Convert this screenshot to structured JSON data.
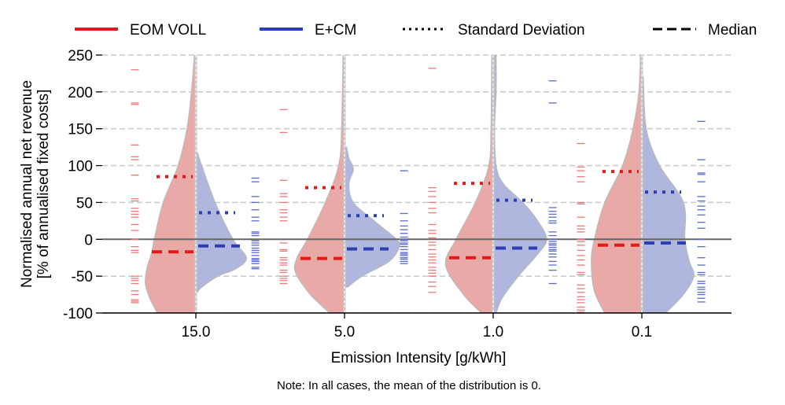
{
  "chart_data": {
    "type": "violin",
    "xlabel": "Emission Intensity [g/kWh]",
    "ylabel": [
      "Normalised annual net revenue",
      "[% of annualised fixed costs]"
    ],
    "note": "Note: In all cases, the mean of the distribution is 0.",
    "categories": [
      "15.0",
      "5.0",
      "1.0",
      "0.1"
    ],
    "ylim": [
      -100,
      250
    ],
    "yticks": [
      -100,
      -50,
      0,
      50,
      100,
      150,
      200,
      250
    ],
    "grid": "horizontal dashed",
    "legend_placement": "top",
    "legend": [
      {
        "label": "EOM VOLL",
        "style": "solid",
        "color": "#e31a1c"
      },
      {
        "label": "E+CM",
        "style": "solid",
        "color": "#2b3fb3"
      },
      {
        "label": "Standard Deviation",
        "style": "dotted",
        "color": "#000000"
      },
      {
        "label": "Median",
        "style": "dashed",
        "color": "#000000"
      }
    ],
    "colors": {
      "eom_fill": "#e8a9a7",
      "ecm_fill": "#b0b7de",
      "eom_line": "#e31a1c",
      "ecm_line": "#2b3fb3",
      "eom_rug": "#f07878",
      "ecm_rug": "#5a6ad0"
    },
    "series": [
      {
        "name": "EOM VOLL",
        "std": [
          85,
          70,
          76,
          92
        ],
        "median": [
          -17,
          -26,
          -25,
          -8
        ],
        "density": [
          [
            [
              -100,
              0.26
            ],
            [
              -80,
              0.31
            ],
            [
              -60,
              0.34
            ],
            [
              -40,
              0.33
            ],
            [
              -20,
              0.3
            ],
            [
              0,
              0.28
            ],
            [
              50,
              0.22
            ],
            [
              100,
              0.12
            ],
            [
              150,
              0.06
            ],
            [
              200,
              0.03
            ],
            [
              250,
              0.01
            ]
          ],
          [
            [
              -100,
              0.1
            ],
            [
              -75,
              0.23
            ],
            [
              -45,
              0.33
            ],
            [
              -25,
              0.32
            ],
            [
              0,
              0.25
            ],
            [
              50,
              0.13
            ],
            [
              100,
              0.04
            ],
            [
              150,
              0.02
            ],
            [
              250,
              0.01
            ]
          ],
          [
            [
              -100,
              0.08
            ],
            [
              -75,
              0.2
            ],
            [
              -35,
              0.32
            ],
            [
              0,
              0.25
            ],
            [
              50,
              0.12
            ],
            [
              100,
              0.03
            ],
            [
              150,
              0.015
            ],
            [
              250,
              0.01
            ]
          ],
          [
            [
              -100,
              0.25
            ],
            [
              -70,
              0.32
            ],
            [
              -30,
              0.34
            ],
            [
              0,
              0.32
            ],
            [
              50,
              0.25
            ],
            [
              100,
              0.13
            ],
            [
              150,
              0.06
            ],
            [
              200,
              0.02
            ],
            [
              250,
              0.01
            ]
          ]
        ],
        "observations": [
          [
            230,
            185,
            183,
            128,
            112,
            108,
            87,
            55,
            52,
            42,
            38,
            34,
            30,
            20,
            12,
            0,
            -10,
            -15,
            -18,
            -50,
            -53,
            -56,
            -60,
            -70,
            -75,
            -82,
            -84,
            -86
          ],
          [
            176,
            145,
            80,
            62,
            58,
            50,
            40,
            36,
            30,
            25,
            -5,
            -14,
            -16,
            -25,
            -28,
            -32,
            -35,
            -42,
            -45,
            -50,
            -53,
            -56,
            -60
          ],
          [
            232,
            70,
            65,
            58,
            50,
            42,
            36,
            20,
            12,
            8,
            2,
            -4,
            -8,
            -14,
            -20,
            -24,
            -28,
            -32,
            -38,
            -42,
            -46,
            -50,
            -58,
            -64,
            -72
          ],
          [
            130,
            98,
            93,
            85,
            78,
            50,
            48,
            30,
            18,
            14,
            10,
            0,
            -3,
            -8,
            -15,
            -22,
            -28,
            -35,
            -45,
            -48,
            -62,
            -67,
            -72,
            -78,
            -82,
            -86,
            -92,
            -96,
            -99
          ]
        ]
      },
      {
        "name": "E+CM",
        "std": [
          36,
          32,
          53,
          64
        ],
        "median": [
          -9,
          -13,
          -12,
          -5
        ],
        "density": [
          [
            [
              -72,
              0.01
            ],
            [
              -65,
              0.04
            ],
            [
              -50,
              0.15
            ],
            [
              -40,
              0.27
            ],
            [
              -25,
              0.34
            ],
            [
              0,
              0.25
            ],
            [
              50,
              0.13
            ],
            [
              100,
              0.04
            ],
            [
              118,
              0.01
            ]
          ],
          [
            [
              -65,
              0.02
            ],
            [
              -50,
              0.12
            ],
            [
              -30,
              0.3
            ],
            [
              -10,
              0.37
            ],
            [
              0,
              0.35
            ],
            [
              25,
              0.2
            ],
            [
              50,
              0.06
            ],
            [
              75,
              0.03
            ],
            [
              95,
              0.06
            ],
            [
              110,
              0.03
            ],
            [
              125,
              0.015
            ]
          ],
          [
            [
              -100,
              0.02
            ],
            [
              -80,
              0.06
            ],
            [
              -50,
              0.17
            ],
            [
              -20,
              0.3
            ],
            [
              0,
              0.36
            ],
            [
              25,
              0.3
            ],
            [
              50,
              0.2
            ],
            [
              75,
              0.07
            ],
            [
              100,
              0.02
            ],
            [
              150,
              0.01
            ],
            [
              200,
              0.02
            ],
            [
              250,
              0.02
            ]
          ],
          [
            [
              -100,
              0.16
            ],
            [
              -75,
              0.28
            ],
            [
              -50,
              0.35
            ],
            [
              -30,
              0.32
            ],
            [
              0,
              0.29
            ],
            [
              50,
              0.28
            ],
            [
              100,
              0.12
            ],
            [
              150,
              0.03
            ],
            [
              220,
              0.01
            ]
          ]
        ],
        "observations": [
          [
            83,
            78,
            58,
            50,
            40,
            30,
            25,
            10,
            8,
            5,
            -2,
            -5,
            -8,
            -12,
            -15,
            -18,
            -22,
            -26,
            -28,
            -30,
            -33,
            -38,
            -40
          ],
          [
            93,
            35,
            25,
            18,
            13,
            8,
            3,
            0,
            -2,
            -5,
            -7,
            -10,
            -14,
            -18,
            -20,
            -22,
            -25,
            -27,
            -30,
            -33
          ],
          [
            215,
            185,
            43,
            38,
            34,
            30,
            25,
            22,
            10,
            5,
            0,
            -3,
            -6,
            -8,
            -11,
            -14,
            -16,
            -20,
            -24,
            -30,
            -35,
            -42,
            -60
          ],
          [
            160,
            108,
            90,
            88,
            78,
            58,
            52,
            45,
            40,
            33,
            23,
            15,
            0,
            -10,
            -25,
            -35,
            -45,
            -48,
            -57,
            -60,
            -65,
            -68,
            -72,
            -75,
            -80,
            -85
          ]
        ]
      }
    ]
  }
}
